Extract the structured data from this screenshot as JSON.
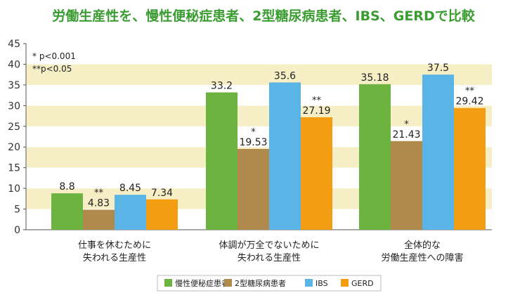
{
  "title": "労働生産性を、慢性便秘症患者、2型糖尿病患者、IBS、GERDで比較",
  "chart_data": {
    "type": "bar",
    "categories": [
      "仕事を休むために\n失われる生産性",
      "体調が万全でないために\n失われる生産性",
      "全体的な\n労働生産性への障害"
    ],
    "series": [
      {
        "name": "慢性便秘症患者",
        "values": [
          8.8,
          33.2,
          35.18
        ],
        "labels": [
          "8.8",
          "33.2",
          "35.18"
        ],
        "color": "#6cb33f",
        "sig": [
          "",
          "",
          ""
        ]
      },
      {
        "name": "2型糖尿病患者",
        "values": [
          4.83,
          19.53,
          21.43
        ],
        "labels": [
          "4.83",
          "19.53",
          "21.43"
        ],
        "color": "#b08a4c",
        "sig": [
          "**",
          "*",
          "*"
        ]
      },
      {
        "name": "IBS",
        "values": [
          8.45,
          35.6,
          37.5
        ],
        "labels": [
          "8.45",
          "35.6",
          "37.5"
        ],
        "color": "#5bb4e6",
        "sig": [
          "",
          "",
          ""
        ]
      },
      {
        "name": "GERD",
        "values": [
          7.34,
          27.19,
          29.42
        ],
        "labels": [
          "7.34",
          "27.19",
          "29.42"
        ],
        "color": "#f39d12",
        "sig": [
          "",
          "**",
          "**"
        ]
      }
    ],
    "ylim": [
      0,
      45
    ],
    "yticks": [
      0,
      5,
      10,
      15,
      20,
      25,
      30,
      35,
      40,
      45
    ],
    "band_colors": [
      "#ffffff",
      "#f6efc6"
    ],
    "notes": [
      "*  p<0.001",
      "**p<0.05"
    ],
    "legend_position": "bottom-center"
  }
}
